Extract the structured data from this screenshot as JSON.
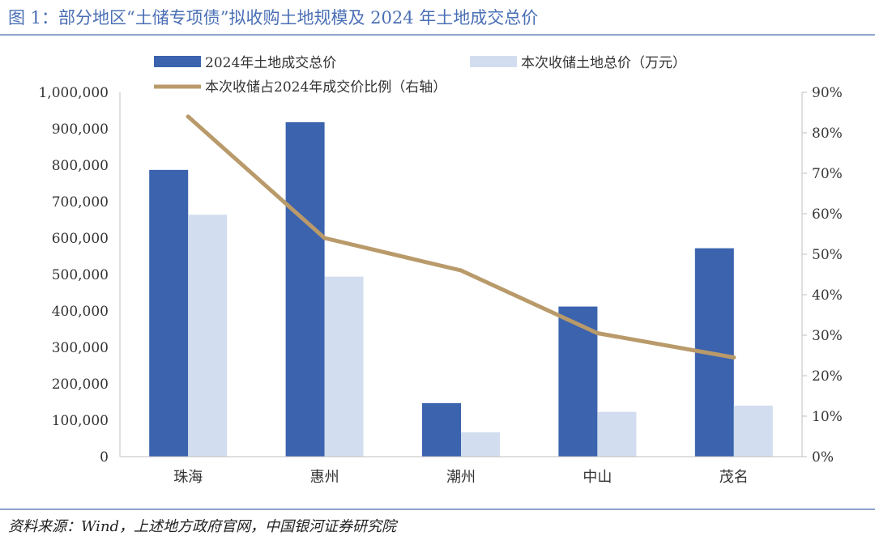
{
  "title": "图 1：部分地区“土储专项债”拟收购土地规模及 2024 年土地成交总价",
  "source": "资料来源：Wind，上述地方政府官网，中国银河证券研究院",
  "colors": {
    "bar_total": "#3b63ae",
    "bar_acquire": "#d2deef",
    "line_ratio": "#b99a6a",
    "title": "#4a6fb5"
  },
  "chart_data": {
    "type": "bar",
    "categories": [
      "珠海",
      "惠州",
      "潮州",
      "中山",
      "茂名"
    ],
    "series": [
      {
        "name": "2024年土地成交总价",
        "type": "bar",
        "axis": "left",
        "values": [
          787000,
          918000,
          147000,
          412000,
          572000
        ]
      },
      {
        "name": "本次收储土地总价（万元）",
        "type": "bar",
        "axis": "left",
        "values": [
          664000,
          494000,
          67000,
          123000,
          140000
        ]
      },
      {
        "name": "本次收储占2024年成交价比例（右轴）",
        "type": "line",
        "axis": "right",
        "values": [
          0.84,
          0.54,
          0.46,
          0.305,
          0.245
        ]
      }
    ],
    "ylim": [
      0,
      1000000
    ],
    "y_ticks": [
      0,
      100000,
      200000,
      300000,
      400000,
      500000,
      600000,
      700000,
      800000,
      900000,
      1000000
    ],
    "y_tick_labels": [
      "0",
      "100,000",
      "200,000",
      "300,000",
      "400,000",
      "500,000",
      "600,000",
      "700,000",
      "800,000",
      "900,000",
      "1,000,000"
    ],
    "y2lim": [
      0,
      0.9
    ],
    "y2_ticks": [
      0,
      0.1,
      0.2,
      0.3,
      0.4,
      0.5,
      0.6,
      0.7,
      0.8,
      0.9
    ],
    "y2_tick_labels": [
      "0%",
      "10%",
      "20%",
      "30%",
      "40%",
      "50%",
      "60%",
      "70%",
      "80%",
      "90%"
    ],
    "grid": false,
    "legend_position": "top"
  }
}
